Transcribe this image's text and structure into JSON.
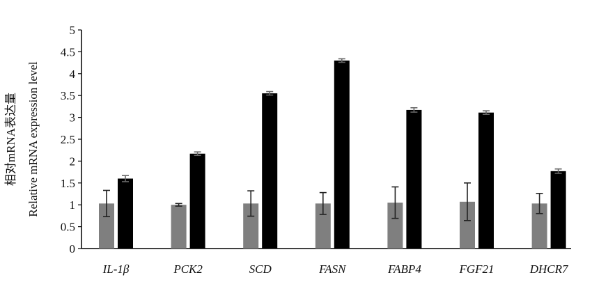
{
  "chart_data": {
    "type": "bar",
    "ylabel_cn": "相对mRNA表达量",
    "ylabel_en": "Relative mRNA expression level",
    "ylim": [
      0,
      5
    ],
    "yticks": [
      "0",
      "0.5",
      "1",
      "1.5",
      "2",
      "2.5",
      "3",
      "3.5",
      "4",
      "4.5",
      "5"
    ],
    "ytick_values": [
      0,
      0.5,
      1,
      1.5,
      2,
      2.5,
      3,
      3.5,
      4,
      4.5,
      5
    ],
    "categories": [
      "IL-1β",
      "PCK2",
      "SCD",
      "FASN",
      "FABP4",
      "FGF21",
      "DHCR7"
    ],
    "series": [
      {
        "color": "#7f7f7f",
        "values": [
          1.03,
          1.0,
          1.03,
          1.03,
          1.05,
          1.07,
          1.03
        ],
        "errors": [
          0.3,
          0.03,
          0.29,
          0.25,
          0.36,
          0.43,
          0.23
        ]
      },
      {
        "color": "#000000",
        "values": [
          1.6,
          2.17,
          3.55,
          4.3,
          3.17,
          3.11,
          1.77
        ],
        "errors": [
          0.07,
          0.04,
          0.04,
          0.04,
          0.05,
          0.04,
          0.05
        ]
      }
    ],
    "grid": false,
    "legend": "none"
  }
}
